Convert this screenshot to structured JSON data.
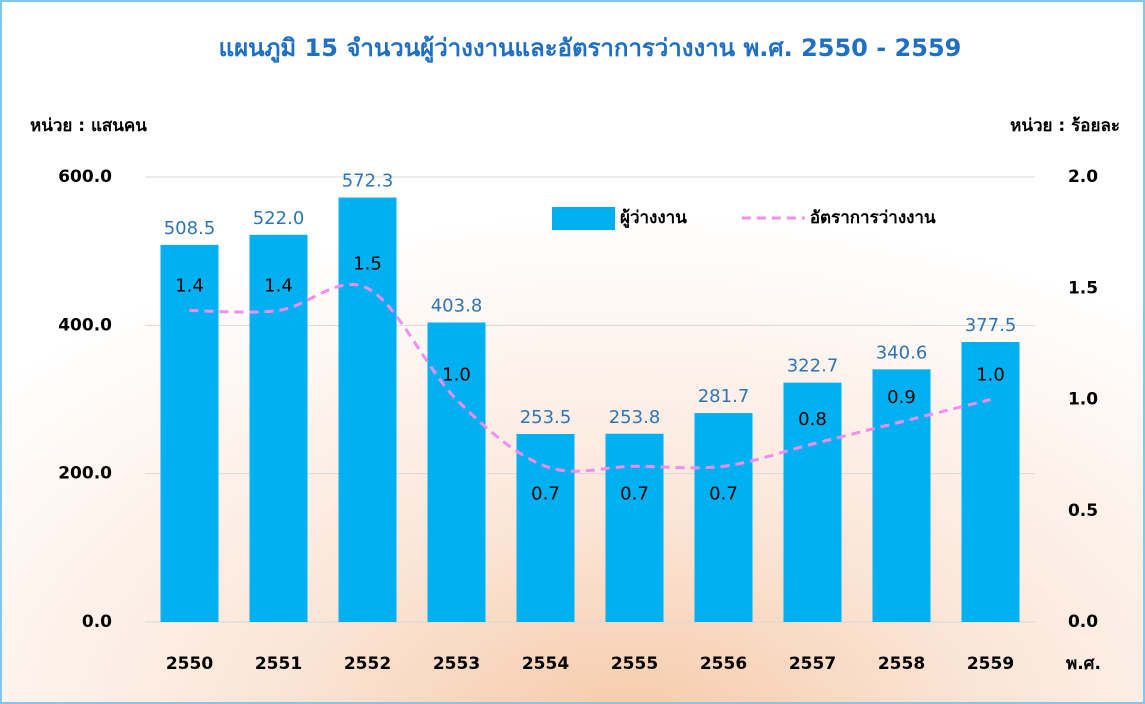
{
  "chart_data": {
    "type": "bar",
    "title": "แผนภูมิ 15  จำนวนผู้ว่างงานและอัตราการว่างงาน พ.ศ. 2550 - 2559",
    "y_label": "หน่วย : แสนคน",
    "y2_label": "หน่วย : ร้อยละ",
    "x_label": "พ.ศ.",
    "categories": [
      "2550",
      "2551",
      "2552",
      "2553",
      "2554",
      "2555",
      "2556",
      "2557",
      "2558",
      "2559"
    ],
    "series": [
      {
        "name": "ผู้ว่างงาน",
        "type": "bar",
        "color": "#00b0f0",
        "values": [
          508.5,
          522.0,
          572.3,
          403.8,
          253.5,
          253.8,
          281.7,
          322.7,
          340.6,
          377.5
        ],
        "value_labels": [
          "508.5",
          "522.0",
          "572.3",
          "403.8",
          "253.5",
          "253.8",
          "281.7",
          "322.7",
          "340.6",
          "377.5"
        ]
      },
      {
        "name": "อัตราการว่างงาน",
        "type": "line",
        "axis": "y2",
        "color": "#f58cf0",
        "values": [
          1.4,
          1.4,
          1.5,
          1.0,
          0.7,
          0.7,
          0.7,
          0.8,
          0.9,
          1.0
        ],
        "value_labels": [
          "1.4",
          "1.4",
          "1.5",
          "1.0",
          "0.7",
          "0.7",
          "0.7",
          "0.8",
          "0.9",
          "1.0"
        ]
      }
    ],
    "ylim": [
      0,
      600
    ],
    "yticks": [
      {
        "value": 0,
        "label": "0.0"
      },
      {
        "value": 200,
        "label": "200.0"
      },
      {
        "value": 400,
        "label": "400.0"
      },
      {
        "value": 600,
        "label": "600.0"
      }
    ],
    "y2lim": [
      0,
      2
    ],
    "y2ticks": [
      {
        "value": 0,
        "label": "0.0"
      },
      {
        "value": 0.5,
        "label": "0.5"
      },
      {
        "value": 1,
        "label": "1.0"
      },
      {
        "value": 1.5,
        "label": "1.5"
      },
      {
        "value": 2,
        "label": "2.0"
      }
    ],
    "grid": true,
    "legend": "top-right"
  }
}
